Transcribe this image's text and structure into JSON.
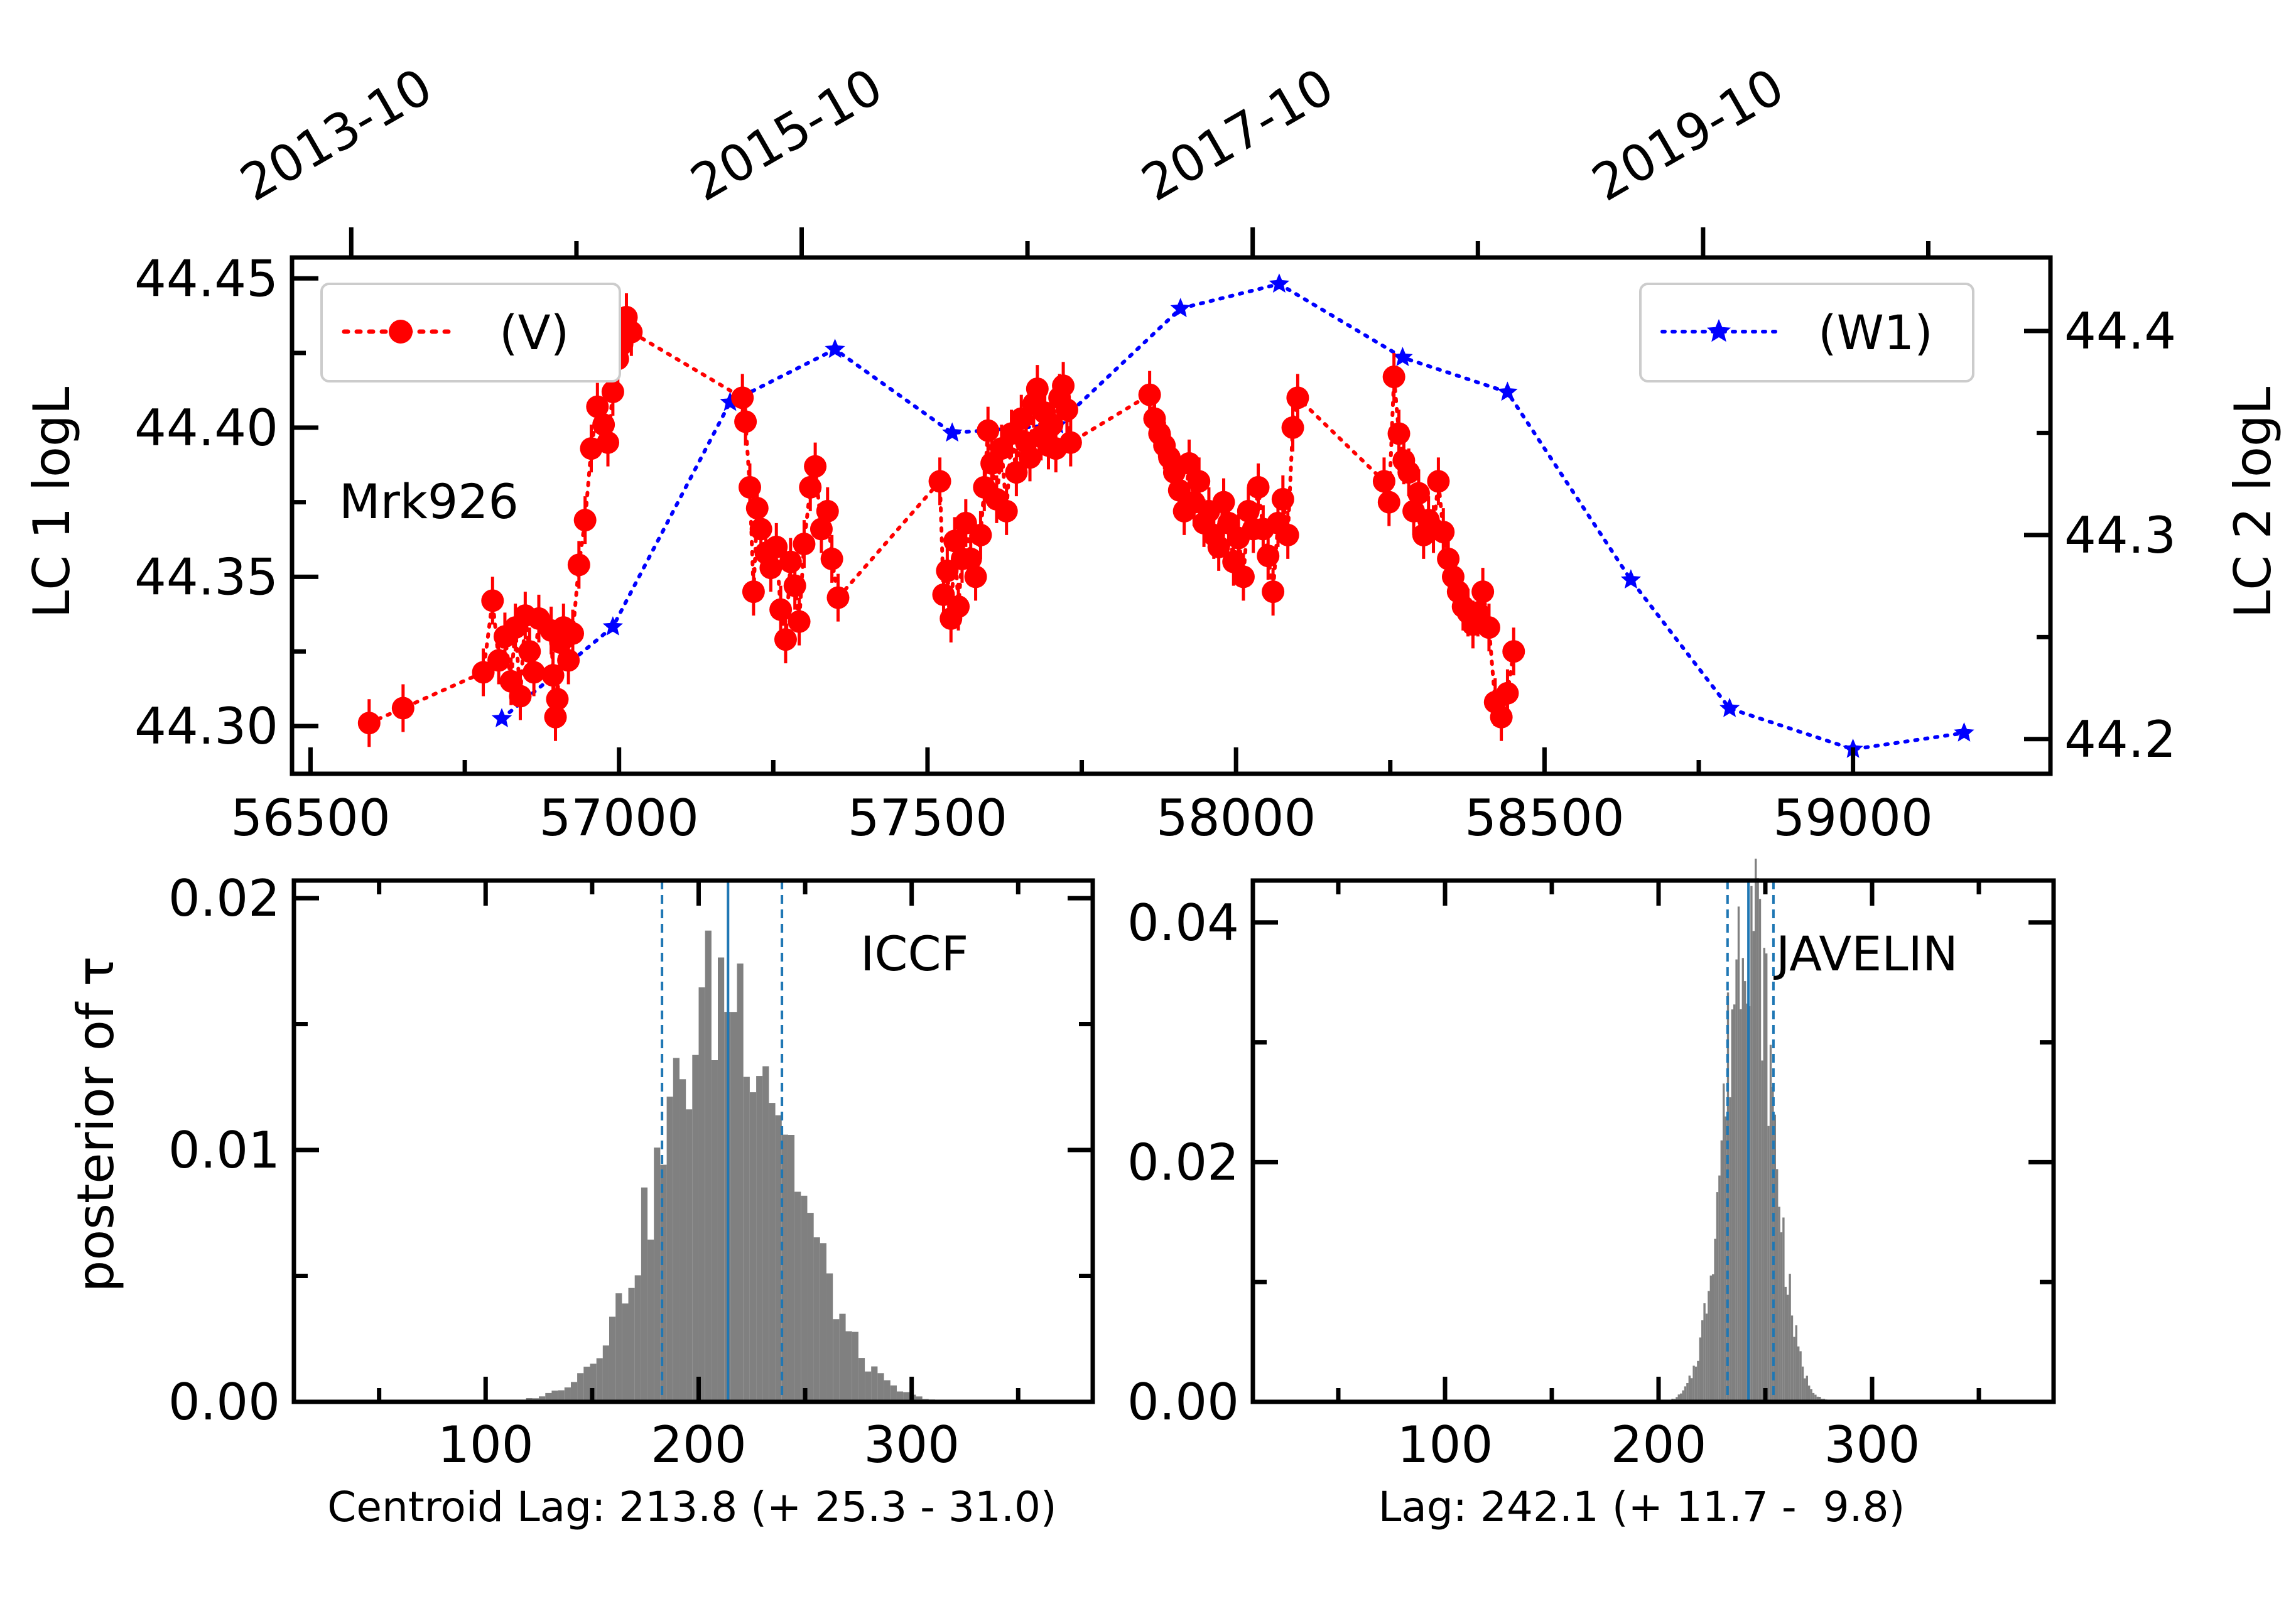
{
  "colors": {
    "lc1": "#ff0000",
    "lc2": "#0000ff",
    "hist": "#808080",
    "lag_lines": "#1f77b4"
  },
  "chart_data": [
    {
      "type": "line",
      "panel": "light-curves",
      "annotation": "Mrk926",
      "xlabel": "",
      "ylabel_left": "LC 1 logL",
      "ylabel_right": "LC 2 logL",
      "xlim": [
        56470,
        59320
      ],
      "ylim_left": [
        44.284,
        44.457
      ],
      "ylim_right": [
        44.183,
        44.436
      ],
      "x_ticks": [
        56500,
        57000,
        57500,
        58000,
        58500,
        59000
      ],
      "x_tick_labels": [
        "56500",
        "57000",
        "57500",
        "58000",
        "58500",
        "59000"
      ],
      "y_ticks_left": [
        44.3,
        44.35,
        44.4,
        44.45
      ],
      "y_tick_labels_left": [
        "44.30",
        "44.35",
        "44.40",
        "44.45"
      ],
      "y_ticks_right": [
        44.2,
        44.3,
        44.4
      ],
      "y_tick_labels_right": [
        "44.2",
        "44.3",
        "44.4"
      ],
      "top_axis": {
        "ticks_mjd": [
          56566,
          57296,
          58027,
          58757
        ],
        "tick_labels": [
          "2013-10",
          "2015-10",
          "2017-10",
          "2019-10"
        ],
        "minor_ticks_mjd": [
          56931,
          57662,
          58392,
          59122
        ]
      },
      "legend": [
        {
          "label": "(V)",
          "placement": "upper-left"
        },
        {
          "label": "(W1)",
          "placement": "upper-right"
        }
      ],
      "series": [
        {
          "name": "(V)",
          "axis": "left",
          "x": [
            56595,
            56650,
            56780,
            56795,
            56805,
            56815,
            56825,
            56832,
            56840,
            56848,
            56855,
            56862,
            56870,
            56890,
            56893,
            56897,
            56900,
            56905,
            56910,
            56918,
            56925,
            56935,
            56945,
            56955,
            56965,
            56975,
            56982,
            56990,
            56998,
            57005,
            57012,
            57020,
            57200,
            57205,
            57212,
            57218,
            57224,
            57230,
            57238,
            57246,
            57255,
            57262,
            57270,
            57278,
            57285,
            57292,
            57300,
            57310,
            57318,
            57328,
            57338,
            57345,
            57355,
            57520,
            57526,
            57532,
            57538,
            57544,
            57550,
            57556,
            57562,
            57570,
            57578,
            57586,
            57592,
            57598,
            57604,
            57612,
            57620,
            57628,
            57636,
            57644,
            57652,
            57660,
            57666,
            57672,
            57678,
            57684,
            57690,
            57696,
            57702,
            57708,
            57714,
            57720,
            57726,
            57732,
            57860,
            57868,
            57876,
            57884,
            57892,
            57900,
            57908,
            57916,
            57924,
            57932,
            57940,
            57948,
            57956,
            57964,
            57972,
            57980,
            57988,
            57996,
            58004,
            58012,
            58020,
            58028,
            58036,
            58044,
            58052,
            58060,
            58068,
            58076,
            58084,
            58092,
            58100,
            58240,
            58248,
            58256,
            58264,
            58272,
            58280,
            58288,
            58296,
            58304,
            58312,
            58320,
            58328,
            58336,
            58344,
            58352,
            58360,
            58368,
            58376,
            58384,
            58392,
            58400,
            58410,
            58420,
            58430,
            58440,
            58450
          ],
          "y": [
            44.301,
            44.306,
            44.318,
            44.342,
            44.322,
            44.33,
            44.315,
            44.333,
            44.31,
            44.337,
            44.325,
            44.318,
            44.336,
            44.332,
            44.317,
            44.303,
            44.309,
            44.328,
            44.333,
            44.322,
            44.331,
            44.354,
            44.369,
            44.393,
            44.407,
            44.401,
            44.395,
            44.412,
            44.423,
            44.428,
            44.437,
            44.432,
            44.41,
            44.402,
            44.38,
            44.345,
            44.373,
            44.366,
            44.358,
            44.353,
            44.36,
            44.339,
            44.329,
            44.355,
            44.347,
            44.335,
            44.361,
            44.38,
            44.387,
            44.366,
            44.372,
            44.356,
            44.343,
            44.382,
            44.344,
            44.352,
            44.336,
            44.362,
            44.34,
            44.356,
            44.368,
            44.356,
            44.35,
            44.364,
            44.38,
            44.399,
            44.388,
            44.376,
            44.393,
            44.372,
            44.398,
            44.385,
            44.403,
            44.395,
            44.39,
            44.408,
            44.413,
            44.397,
            44.405,
            44.394,
            44.401,
            44.393,
            44.41,
            44.414,
            44.406,
            44.395,
            44.411,
            44.403,
            44.398,
            44.394,
            44.39,
            44.385,
            44.379,
            44.372,
            44.388,
            44.375,
            44.382,
            44.368,
            44.372,
            44.364,
            44.36,
            44.375,
            44.368,
            44.355,
            44.363,
            44.35,
            44.372,
            44.366,
            44.38,
            44.366,
            44.357,
            44.345,
            44.368,
            44.376,
            44.364,
            44.4,
            44.41,
            44.382,
            44.375,
            44.417,
            44.398,
            44.389,
            44.385,
            44.372,
            44.378,
            44.364,
            44.369,
            44.366,
            44.382,
            44.365,
            44.356,
            44.35,
            44.345,
            44.34,
            44.338,
            44.334,
            44.338,
            44.345,
            44.333,
            44.308,
            44.303,
            44.311,
            44.325
          ]
        },
        {
          "name": "(W1)",
          "axis": "right",
          "x": [
            56810,
            56990,
            57180,
            57350,
            57540,
            57710,
            57910,
            58070,
            58270,
            58440,
            58640,
            58800,
            59000,
            59180
          ],
          "y": [
            44.21,
            44.255,
            44.365,
            44.391,
            44.35,
            44.354,
            44.411,
            44.423,
            44.387,
            44.37,
            44.278,
            44.215,
            44.195,
            44.203
          ]
        }
      ]
    },
    {
      "type": "bar",
      "panel": "iccf-histogram",
      "annotation": "ICCF",
      "ylabel": "posterior of τ",
      "xlabel": "Centroid Lag: 213.8 (+ 25.3 - 31.0)",
      "xlim": [
        10,
        385
      ],
      "ylim": [
        0,
        0.0207
      ],
      "x_ticks": [
        100,
        200,
        300
      ],
      "x_tick_labels": [
        "100",
        "200",
        "300"
      ],
      "y_ticks": [
        0.0,
        0.01,
        0.02
      ],
      "y_tick_labels": [
        "0.00",
        "0.01",
        "0.02"
      ],
      "lag": {
        "median": 213.8,
        "upper": 239.1,
        "lower": 182.8
      },
      "histogram": {
        "center": 213.8,
        "sigma": 30,
        "bin_width": 3,
        "peak": 0.0165,
        "range": [
          95,
          370
        ]
      }
    },
    {
      "type": "bar",
      "panel": "javelin-histogram",
      "annotation": "JAVELIN",
      "xlabel": "Lag: 242.1 (+ 11.7 -  9.8)",
      "xlim": [
        10,
        385
      ],
      "ylim": [
        0,
        0.0435
      ],
      "x_ticks": [
        100,
        200,
        300
      ],
      "x_tick_labels": [
        "100",
        "200",
        "300"
      ],
      "y_ticks": [
        0.0,
        0.02,
        0.04
      ],
      "y_tick_labels": [
        "0.00",
        "0.02",
        "0.04"
      ],
      "lag": {
        "median": 242.1,
        "upper": 253.8,
        "lower": 232.3
      },
      "histogram": {
        "center": 242.1,
        "sigma": 11,
        "bin_width": 1,
        "peak": 0.042,
        "range": [
          195,
          285
        ]
      }
    }
  ]
}
